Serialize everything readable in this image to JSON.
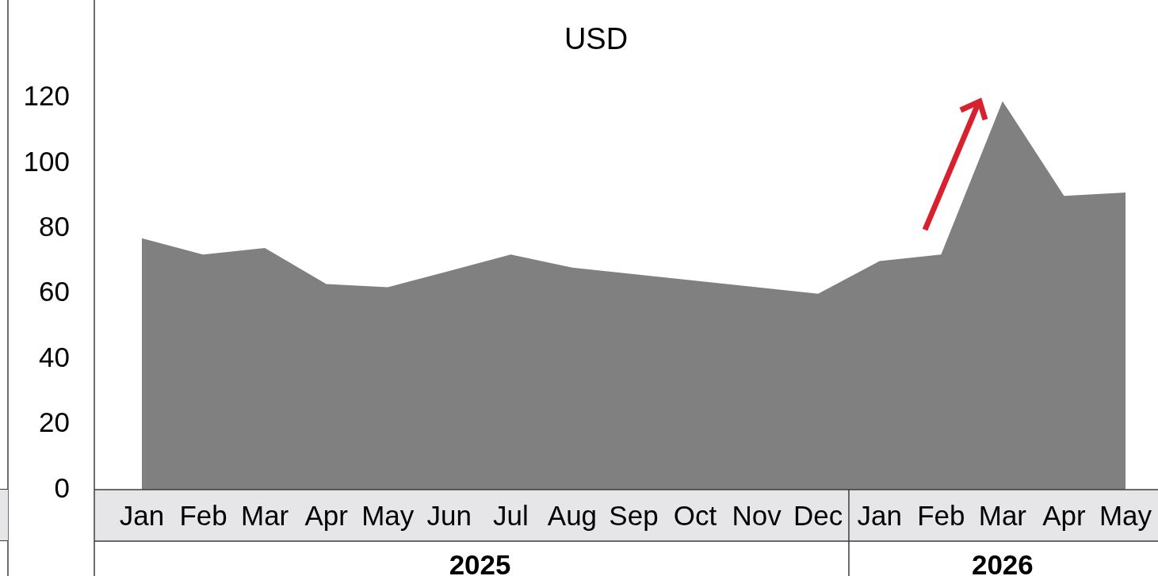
{
  "chart_data": {
    "type": "area",
    "title": "USD",
    "categories": [
      "Jan",
      "Feb",
      "Mar",
      "Apr",
      "May",
      "Jun",
      "Jul",
      "Aug",
      "Sep",
      "Oct",
      "Nov",
      "Dec",
      "Jan",
      "Feb",
      "Mar",
      "Apr",
      "May"
    ],
    "values": [
      77,
      72,
      74,
      63,
      62,
      67,
      72,
      68,
      66,
      64,
      62,
      60,
      70,
      72,
      119,
      90,
      91
    ],
    "color": "#808080",
    "ylim": [
      0,
      150
    ],
    "yticks": [
      0,
      20,
      40,
      60,
      80,
      100,
      120
    ],
    "annotations": [
      "2025",
      "2026"
    ]
  }
}
